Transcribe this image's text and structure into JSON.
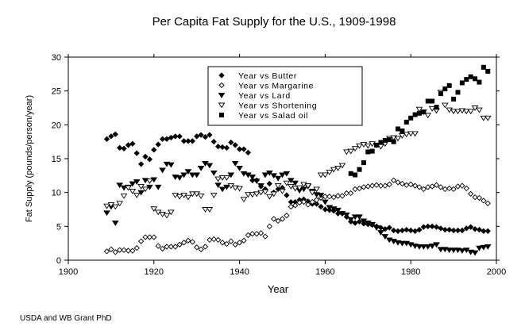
{
  "chart_data": {
    "type": "scatter",
    "title": "Per Capita Fat Supply for the U.S., 1909-1998",
    "xlabel": "Year",
    "ylabel": "Fat Supply (pounds/person/year)",
    "xlim": [
      1900,
      2000
    ],
    "ylim": [
      0,
      30
    ],
    "xticks": [
      1900,
      1920,
      1940,
      1960,
      1980,
      2000
    ],
    "yticks": [
      0,
      5,
      10,
      15,
      20,
      25,
      30
    ],
    "grid": false,
    "legend_position": "top-center",
    "footer": "USDA and WB Grant PhD",
    "series": [
      {
        "name": "Year vs Butter",
        "marker": "diamond-filled",
        "x_start": 1909,
        "values": [
          17.9,
          18.3,
          18.6,
          16.6,
          16.5,
          17.0,
          17.2,
          15.8,
          14.2,
          15.3,
          14.9,
          16.3,
          17.1,
          17.9,
          17.9,
          18.1,
          18.3,
          18.3,
          17.6,
          17.6,
          17.6,
          18.3,
          18.5,
          18.2,
          18.5,
          17.5,
          16.8,
          16.7,
          16.6,
          17.4,
          17.0,
          16.4,
          16.4,
          15.9,
          11.8,
          11.8,
          10.9,
          10.5,
          11.3,
          10.0,
          10.5,
          10.7,
          9.6,
          8.6,
          8.6,
          8.9,
          9.0,
          8.7,
          8.3,
          8.3,
          7.9,
          7.5,
          7.4,
          7.3,
          6.9,
          6.9,
          6.4,
          5.7,
          5.5,
          5.7,
          5.4,
          5.3,
          5.2,
          5.0,
          4.8,
          4.6,
          4.8,
          4.4,
          4.3,
          4.4,
          4.5,
          4.4,
          4.3,
          4.5,
          4.9,
          5.0,
          5.0,
          4.9,
          4.7,
          4.5,
          4.5,
          4.4,
          4.4,
          4.4,
          4.7,
          4.9,
          4.6,
          4.5,
          4.3,
          4.3
        ]
      },
      {
        "name": "Year vs Margarine",
        "marker": "diamond-open",
        "x_start": 1909,
        "values": [
          1.3,
          1.6,
          1.2,
          1.5,
          1.5,
          1.4,
          1.4,
          1.8,
          2.8,
          3.4,
          3.4,
          3.4,
          2.1,
          1.7,
          2.0,
          2.0,
          2.0,
          2.3,
          2.6,
          2.9,
          2.7,
          1.9,
          1.6,
          2.0,
          3.0,
          3.1,
          3.0,
          2.6,
          2.4,
          2.8,
          2.3,
          2.6,
          2.9,
          3.7,
          3.9,
          3.9,
          4.0,
          3.5,
          5.0,
          6.1,
          5.8,
          6.1,
          6.6,
          7.9,
          8.1,
          8.5,
          8.6,
          8.2,
          8.6,
          8.9,
          9.2,
          9.4,
          9.4,
          9.3,
          9.5,
          9.5,
          9.9,
          9.9,
          10.5,
          10.6,
          10.8,
          10.9,
          11.0,
          11.1,
          11.0,
          11.0,
          11.2,
          11.8,
          11.5,
          11.3,
          11.1,
          11.2,
          11.0,
          10.8,
          10.5,
          10.8,
          10.9,
          11.1,
          10.8,
          10.5,
          10.6,
          10.5,
          10.9,
          11.0,
          10.6,
          9.8,
          9.3,
          9.2,
          8.8,
          8.4
        ]
      },
      {
        "name": "Year vs Lard",
        "marker": "triangle-down-filled",
        "x_start": 1909,
        "values": [
          7.0,
          7.9,
          5.5,
          11.1,
          10.7,
          10.8,
          11.3,
          11.6,
          10.0,
          11.8,
          10.8,
          11.9,
          10.8,
          13.3,
          14.2,
          14.1,
          12.3,
          12.2,
          12.6,
          13.1,
          12.6,
          12.6,
          13.6,
          14.3,
          14.0,
          12.9,
          11.1,
          10.5,
          10.8,
          12.6,
          14.3,
          13.6,
          12.8,
          12.6,
          12.3,
          11.7,
          11.0,
          12.6,
          12.9,
          12.5,
          12.1,
          12.6,
          12.8,
          11.8,
          11.4,
          10.3,
          10.5,
          10.9,
          10.2,
          9.7,
          9.6,
          8.6,
          7.8,
          7.6,
          7.4,
          6.9,
          6.7,
          6.0,
          6.4,
          6.4,
          5.8,
          5.5,
          5.3,
          4.8,
          4.1,
          3.5,
          3.0,
          2.8,
          2.6,
          2.5,
          2.5,
          2.3,
          2.1,
          2.0,
          2.0,
          2.0,
          2.1,
          2.3,
          1.6,
          1.6,
          1.5,
          1.5,
          1.5,
          1.4,
          1.5,
          1.2,
          1.1,
          1.8,
          1.9,
          2.0
        ]
      },
      {
        "name": "Year vs Shortening",
        "marker": "triangle-down-open",
        "x_start": 1909,
        "values": [
          8.0,
          8.2,
          7.9,
          8.4,
          9.5,
          10.7,
          10.2,
          9.6,
          10.9,
          10.5,
          11.7,
          7.6,
          7.1,
          6.8,
          6.6,
          7.1,
          9.6,
          9.4,
          9.6,
          9.3,
          9.8,
          9.8,
          9.5,
          7.5,
          7.5,
          9.6,
          12.0,
          12.2,
          12.2,
          11.0,
          10.7,
          10.6,
          9.0,
          9.7,
          9.7,
          9.8,
          10.0,
          10.1,
          9.4,
          9.8,
          11.0,
          10.2,
          11.4,
          10.9,
          10.6,
          10.7,
          11.2,
          11.0,
          10.0,
          10.5,
          12.6,
          12.6,
          13.0,
          13.4,
          13.6,
          14.0,
          16.0,
          16.1,
          16.5,
          16.9,
          17.1,
          16.9,
          17.2,
          17.0,
          16.8,
          17.2,
          18.0,
          18.1,
          18.0,
          18.4,
          18.6,
          18.7,
          18.7,
          22.3,
          21.9,
          21.4,
          22.4,
          22.1,
          24.8,
          22.9,
          22.2,
          22.0,
          22.0,
          22.1,
          22.0,
          22.0,
          22.5,
          22.2,
          21.0,
          21.0
        ]
      },
      {
        "name": "Year vs Salad oil",
        "marker": "square-filled",
        "x_start": 1966,
        "values": [
          12.8,
          12.6,
          13.4,
          14.4,
          16.0,
          16.1,
          17.0,
          17.4,
          17.7,
          17.8,
          17.5,
          19.4,
          19.1,
          20.4,
          21.0,
          21.5,
          21.7,
          21.9,
          23.5,
          23.5,
          22.6,
          24.6,
          25.3,
          25.8,
          23.8,
          24.8,
          26.2,
          26.7,
          27.1,
          26.8,
          26.3,
          28.5,
          27.9
        ]
      }
    ]
  }
}
